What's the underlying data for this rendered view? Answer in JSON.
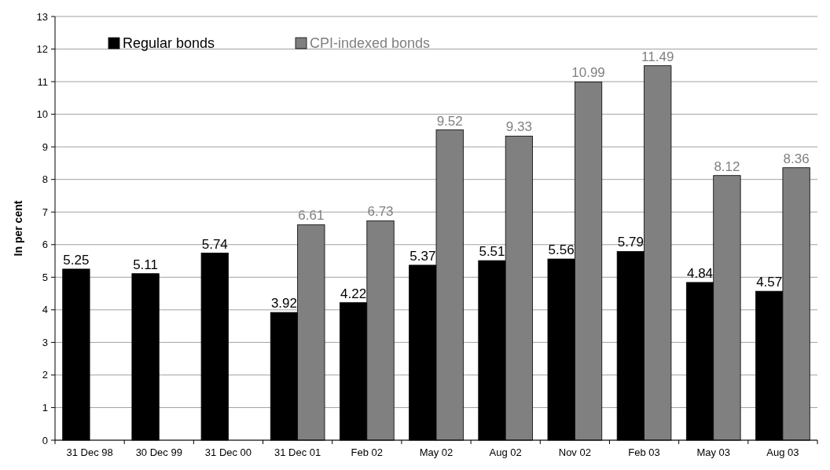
{
  "chart_data": {
    "type": "bar",
    "ylabel": "In per cent",
    "categories": [
      "31 Dec 98",
      "30 Dec 99",
      "31 Dec 00",
      "31 Dec 01",
      "Feb 02",
      "May 02",
      "Aug 02",
      "Nov 02",
      "Feb 03",
      "May 03",
      "Aug 03"
    ],
    "series": [
      {
        "name": "Regular bonds",
        "color": "#000000",
        "values": [
          5.25,
          5.11,
          5.74,
          3.92,
          4.22,
          5.37,
          5.51,
          5.56,
          5.79,
          4.84,
          4.57
        ]
      },
      {
        "name": "CPI-indexed bonds",
        "color": "#808080",
        "values": [
          null,
          null,
          null,
          6.61,
          6.73,
          9.52,
          9.33,
          10.99,
          11.49,
          8.12,
          8.36
        ]
      }
    ],
    "ylim": [
      0,
      13
    ],
    "yticks": [
      0,
      1,
      2,
      3,
      4,
      5,
      6,
      7,
      8,
      9,
      10,
      11,
      12,
      13
    ],
    "grid": "y",
    "legend": "top left",
    "data_labels": true
  }
}
